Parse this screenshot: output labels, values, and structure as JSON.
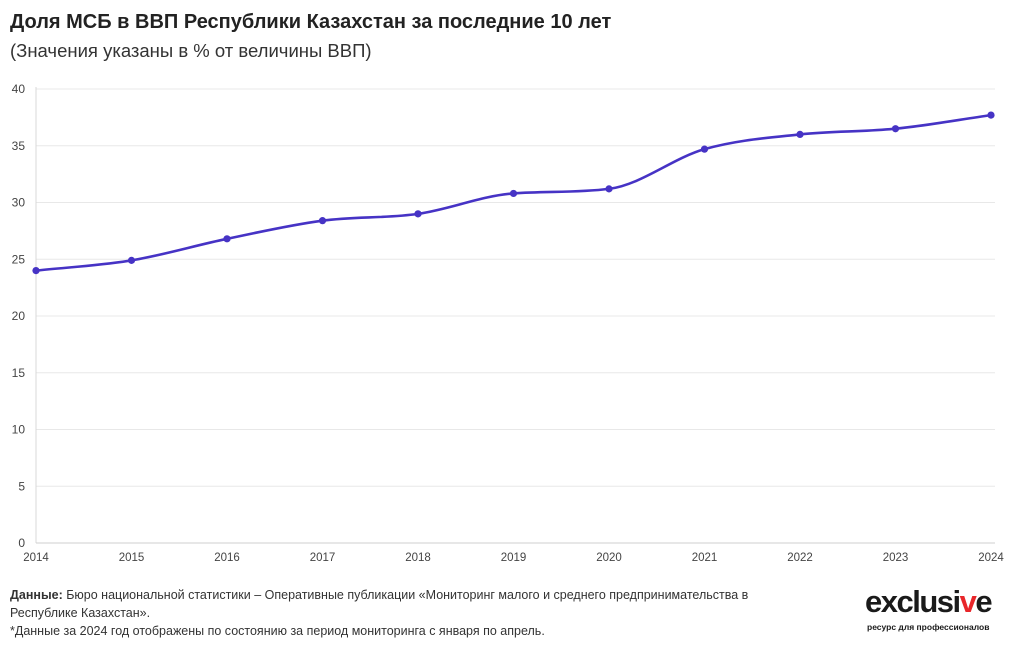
{
  "title": "Доля МСБ в ВВП Республики Казахстан за последние 10 лет",
  "subtitle": "(Значения указаны в % от величины ВВП)",
  "chart_data": {
    "type": "line",
    "title": "Доля МСБ в ВВП Республики Казахстан за последние 10 лет",
    "subtitle": "(Значения указаны в % от величины ВВП)",
    "xlabel": "",
    "ylabel": "",
    "categories": [
      "2014",
      "2015",
      "2016",
      "2017",
      "2018",
      "2019",
      "2020",
      "2021",
      "2022",
      "2023",
      "2024"
    ],
    "series": [
      {
        "values": [
          24.0,
          24.9,
          26.8,
          28.4,
          29.0,
          30.8,
          31.2,
          34.7,
          36.0,
          36.5,
          37.7
        ]
      }
    ],
    "ylim": [
      0,
      40
    ],
    "yticks": [
      0,
      5,
      10,
      15,
      20,
      25,
      30,
      35,
      40
    ],
    "grid": true,
    "legend": "none",
    "line_color": "#4633c5",
    "grid_color": "#e8e8e8"
  },
  "footnote": {
    "source_label": "Данные:",
    "source_text": " Бюро национальной статистики – Оперативные публикации «Мониторинг малого и среднего предпринимательства в Республике Казахстан».",
    "note": "*Данные за 2024 год отображены по состоянию за период мониторинга с января по апрель."
  },
  "logo": {
    "word": "exclusive",
    "tagline": "ресурс для профессионалов",
    "accent_color": "#e8262a"
  }
}
